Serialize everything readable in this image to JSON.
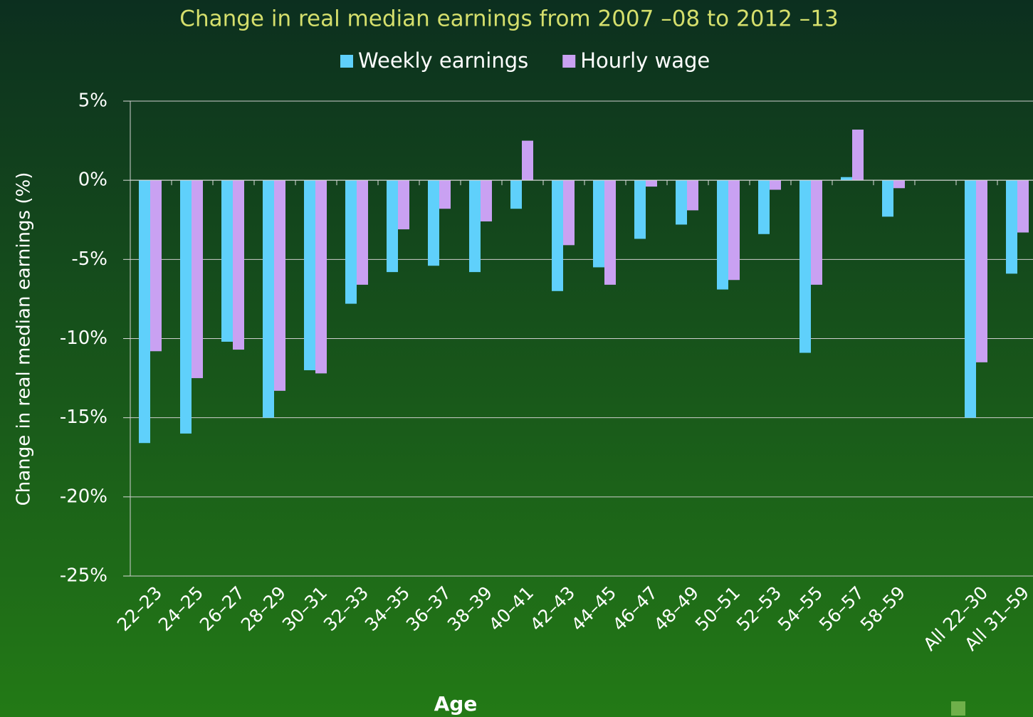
{
  "chart_data": {
    "type": "bar",
    "title": "Change in real median earnings from 2007 –08 to 2012 –13",
    "x_label": "Age",
    "y_label": "Change in real median earnings (%)",
    "categories": [
      "22–23",
      "24–25",
      "26–27",
      "28–29",
      "30–31",
      "32–33",
      "34–35",
      "36–37",
      "38–39",
      "40–41",
      "42–43",
      "44–45",
      "46–47",
      "48–49",
      "50–51",
      "52–53",
      "54–55",
      "56–57",
      "58–59",
      null,
      "All 22–30",
      "All 31–59"
    ],
    "series": [
      {
        "name": "Weekly earnings",
        "color": "#5fd0fb",
        "values": [
          -16.6,
          -16.0,
          -10.2,
          -15.0,
          -12.0,
          -7.8,
          -5.8,
          -5.4,
          -5.8,
          -1.8,
          -7.0,
          -5.5,
          -3.7,
          -2.8,
          -6.9,
          -3.4,
          -10.9,
          0.2,
          -2.3,
          null,
          -15.0,
          -5.9
        ]
      },
      {
        "name": "Hourly wage",
        "color": "#c9a1f2",
        "values": [
          -10.8,
          -12.5,
          -10.7,
          -13.3,
          -12.2,
          -6.6,
          -3.1,
          -1.8,
          -2.6,
          2.5,
          -4.1,
          -6.6,
          -0.4,
          -1.9,
          -6.3,
          -0.6,
          -6.6,
          3.2,
          -0.5,
          null,
          -11.5,
          -3.3
        ]
      }
    ],
    "ylim": [
      -25,
      5
    ],
    "yticks": [
      {
        "value": -25,
        "label": "-25%"
      },
      {
        "value": -20,
        "label": "-20%"
      },
      {
        "value": -15,
        "label": "-15%"
      },
      {
        "value": -10,
        "label": "-10%"
      },
      {
        "value": -5,
        "label": "-5%"
      },
      {
        "value": 0,
        "label": "0%"
      },
      {
        "value": 5,
        "label": "5%"
      }
    ],
    "grid": true
  }
}
